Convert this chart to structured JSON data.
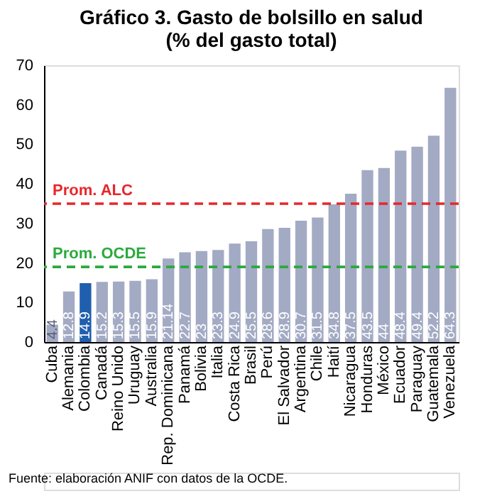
{
  "chart_data": {
    "type": "bar",
    "title": "Gráfico 3. Gasto de bolsillo en salud\n(% del gasto total)",
    "categories": [
      "Cuba",
      "Alemania",
      "Colombia",
      "Canadá",
      "Reino Unido",
      "Uruguay",
      "Australia",
      "Rep. Dominicana",
      "Panamá",
      "Bolivia",
      "Italia",
      "Costa Rica",
      "Brasil",
      "Perú",
      "El Salvador",
      "Argentina",
      "Chile",
      "Haití",
      "Nicaragua",
      "Honduras",
      "México",
      "Ecuador",
      "Paraguay",
      "Guatemala",
      "Venezuela"
    ],
    "values": [
      4.4,
      12.8,
      14.9,
      15.2,
      15.3,
      15.5,
      15.9,
      21.14,
      22.7,
      23,
      23.3,
      24.9,
      25.5,
      28.6,
      28.9,
      30.7,
      31.5,
      34.8,
      37.5,
      43.5,
      44,
      48.4,
      49.4,
      52.2,
      64.3
    ],
    "colors": [
      "#a3aac4",
      "#a3aac4",
      "#1f5fae",
      "#a3aac4",
      "#a3aac4",
      "#a3aac4",
      "#a3aac4",
      "#a3aac4",
      "#a3aac4",
      "#a3aac4",
      "#a3aac4",
      "#a3aac4",
      "#a3aac4",
      "#a3aac4",
      "#a3aac4",
      "#a3aac4",
      "#a3aac4",
      "#a3aac4",
      "#a3aac4",
      "#a3aac4",
      "#a3aac4",
      "#a3aac4",
      "#a3aac4",
      "#a3aac4",
      "#a3aac4"
    ],
    "data_labels": true,
    "ylim": [
      0,
      70
    ],
    "yticks": [
      0,
      10,
      20,
      30,
      40,
      50,
      60,
      70
    ],
    "grid": false,
    "ref_lines": [
      {
        "axis": "y",
        "value": 35,
        "label": "Prom. ALC",
        "color": "#e8262b",
        "line_style": "dashed"
      },
      {
        "axis": "y",
        "value": 19,
        "label": "Prom. OCDE",
        "color": "#2aaa3c",
        "line_style": "dashed"
      }
    ],
    "annotations": [
      "Fuente: elaboración ANIF con datos de la OCDE."
    ]
  }
}
